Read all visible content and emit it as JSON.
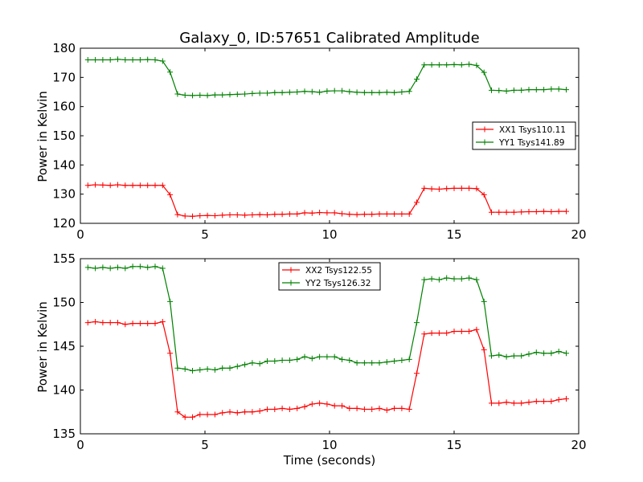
{
  "chart_data": [
    {
      "type": "line",
      "title": "Galaxy_0, ID:57651 Calibrated Amplitude",
      "xlabel": "",
      "ylabel": "Power in Kelvin",
      "xlim": [
        0,
        20
      ],
      "ylim": [
        120,
        180
      ],
      "xticks": [
        "0",
        "5",
        "10",
        "15",
        "20"
      ],
      "yticks": [
        "120",
        "130",
        "140",
        "150",
        "160",
        "170",
        "180"
      ],
      "legend_position": "center-right",
      "grid": false,
      "x": [
        0.3,
        0.6,
        0.9,
        1.2,
        1.5,
        1.8,
        2.1,
        2.4,
        2.7,
        3.0,
        3.3,
        3.6,
        3.9,
        4.2,
        4.5,
        4.8,
        5.1,
        5.4,
        5.7,
        6.0,
        6.3,
        6.6,
        6.9,
        7.2,
        7.5,
        7.8,
        8.1,
        8.4,
        8.7,
        9.0,
        9.3,
        9.6,
        9.9,
        10.2,
        10.5,
        10.8,
        11.1,
        11.4,
        11.7,
        12.0,
        12.3,
        12.6,
        12.9,
        13.2,
        13.5,
        13.8,
        14.1,
        14.4,
        14.7,
        15.0,
        15.3,
        15.6,
        15.9,
        16.2,
        16.5,
        16.8,
        17.1,
        17.4,
        17.7,
        18.0,
        18.3,
        18.6,
        18.9,
        19.2,
        19.5
      ],
      "series": [
        {
          "name": "XX1 Tsys110.11",
          "color": "#ff0000",
          "values": [
            133.0,
            133.2,
            133.1,
            133.0,
            133.2,
            133.0,
            133.0,
            133.0,
            133.0,
            133.0,
            133.0,
            129.8,
            123.0,
            122.5,
            122.4,
            122.6,
            122.7,
            122.6,
            122.8,
            122.9,
            122.9,
            122.8,
            122.9,
            123.0,
            122.9,
            123.1,
            123.1,
            123.2,
            123.2,
            123.6,
            123.5,
            123.7,
            123.6,
            123.6,
            123.3,
            123.1,
            123.0,
            123.1,
            123.1,
            123.2,
            123.2,
            123.2,
            123.2,
            123.2,
            127.2,
            132.0,
            131.8,
            131.7,
            131.9,
            132.0,
            132.0,
            132.0,
            131.9,
            129.8,
            123.8,
            123.8,
            123.8,
            123.8,
            123.9,
            124.0,
            124.0,
            124.1,
            124.0,
            124.1,
            124.1
          ]
        },
        {
          "name": "YY1 Tsys141.89",
          "color": "#008000",
          "values": [
            176.0,
            176.0,
            176.0,
            176.0,
            176.2,
            176.0,
            176.0,
            176.0,
            176.1,
            176.0,
            175.6,
            171.8,
            164.3,
            163.9,
            163.8,
            163.9,
            163.8,
            164.0,
            164.0,
            164.1,
            164.2,
            164.3,
            164.5,
            164.6,
            164.6,
            164.8,
            164.8,
            164.9,
            165.0,
            165.2,
            165.1,
            164.9,
            165.3,
            165.4,
            165.4,
            165.1,
            164.9,
            164.8,
            164.8,
            164.8,
            164.9,
            164.8,
            165.0,
            165.2,
            169.4,
            174.3,
            174.3,
            174.3,
            174.3,
            174.4,
            174.3,
            174.5,
            174.1,
            171.7,
            165.6,
            165.5,
            165.3,
            165.6,
            165.6,
            165.8,
            165.8,
            165.8,
            166.0,
            166.0,
            165.8
          ]
        }
      ]
    },
    {
      "type": "line",
      "title": "",
      "xlabel": "Time (seconds)",
      "ylabel": "Power in Kelvin",
      "xlim": [
        0,
        20
      ],
      "ylim": [
        135,
        155
      ],
      "xticks": [
        "0",
        "5",
        "10",
        "15",
        "20"
      ],
      "yticks": [
        "135",
        "140",
        "145",
        "150",
        "155"
      ],
      "legend_position": "upper-center",
      "grid": false,
      "x": [
        0.3,
        0.6,
        0.9,
        1.2,
        1.5,
        1.8,
        2.1,
        2.4,
        2.7,
        3.0,
        3.3,
        3.6,
        3.9,
        4.2,
        4.5,
        4.8,
        5.1,
        5.4,
        5.7,
        6.0,
        6.3,
        6.6,
        6.9,
        7.2,
        7.5,
        7.8,
        8.1,
        8.4,
        8.7,
        9.0,
        9.3,
        9.6,
        9.9,
        10.2,
        10.5,
        10.8,
        11.1,
        11.4,
        11.7,
        12.0,
        12.3,
        12.6,
        12.9,
        13.2,
        13.5,
        13.8,
        14.1,
        14.4,
        14.7,
        15.0,
        15.3,
        15.6,
        15.9,
        16.2,
        16.5,
        16.8,
        17.1,
        17.4,
        17.7,
        18.0,
        18.3,
        18.6,
        18.9,
        19.2,
        19.5
      ],
      "series": [
        {
          "name": "XX2 Tsys122.55",
          "color": "#ff0000",
          "values": [
            147.7,
            147.8,
            147.7,
            147.7,
            147.7,
            147.5,
            147.6,
            147.6,
            147.6,
            147.6,
            147.8,
            144.2,
            137.5,
            136.9,
            136.9,
            137.2,
            137.2,
            137.2,
            137.4,
            137.5,
            137.4,
            137.5,
            137.5,
            137.6,
            137.8,
            137.8,
            137.9,
            137.8,
            137.9,
            138.1,
            138.4,
            138.5,
            138.4,
            138.2,
            138.2,
            137.9,
            137.9,
            137.8,
            137.8,
            137.9,
            137.7,
            137.9,
            137.9,
            137.8,
            141.9,
            146.4,
            146.5,
            146.5,
            146.5,
            146.7,
            146.7,
            146.7,
            146.9,
            144.6,
            138.5,
            138.5,
            138.6,
            138.5,
            138.5,
            138.6,
            138.7,
            138.7,
            138.7,
            138.9,
            139.0
          ]
        },
        {
          "name": "YY2 Tsys126.32",
          "color": "#008000",
          "values": [
            154.0,
            153.9,
            154.0,
            153.9,
            154.0,
            153.9,
            154.1,
            154.1,
            154.0,
            154.1,
            153.9,
            150.1,
            142.5,
            142.4,
            142.2,
            142.3,
            142.4,
            142.3,
            142.5,
            142.5,
            142.7,
            142.9,
            143.1,
            143.0,
            143.3,
            143.3,
            143.4,
            143.4,
            143.5,
            143.8,
            143.6,
            143.8,
            143.8,
            143.8,
            143.5,
            143.4,
            143.1,
            143.1,
            143.1,
            143.1,
            143.2,
            143.3,
            143.4,
            143.5,
            147.7,
            152.6,
            152.7,
            152.6,
            152.8,
            152.7,
            152.7,
            152.8,
            152.6,
            150.1,
            143.9,
            144.0,
            143.8,
            143.9,
            143.9,
            144.1,
            144.3,
            144.2,
            144.2,
            144.4,
            144.2
          ]
        }
      ]
    }
  ]
}
